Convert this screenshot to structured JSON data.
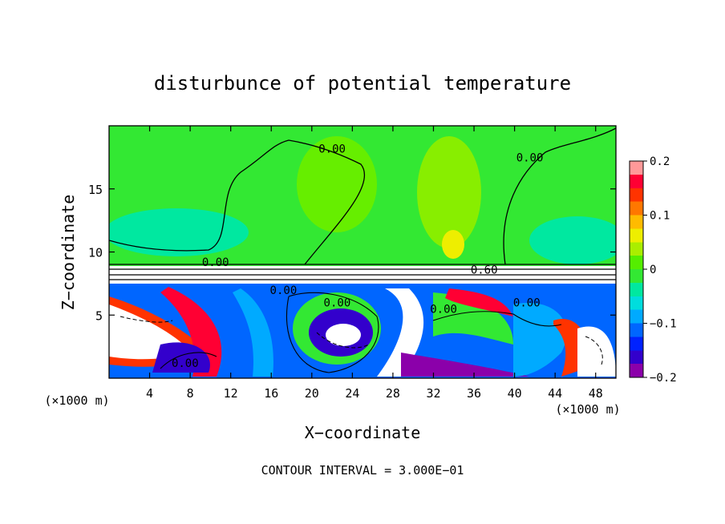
{
  "chart_data": {
    "type": "heatmap",
    "title": "disturbunce of potential temperature",
    "xlabel": "X−coordinate",
    "ylabel": "Z−coordinate",
    "x_unit_left": "(×1000 m)",
    "x_unit_right": "(×1000 m)",
    "footer": "CONTOUR INTERVAL = 3.000E−01",
    "xlim": [
      0,
      50
    ],
    "ylim": [
      0,
      20
    ],
    "x_ticks": [
      4,
      8,
      12,
      16,
      20,
      24,
      28,
      32,
      36,
      40,
      44,
      48
    ],
    "y_ticks": [
      5,
      10,
      15
    ],
    "colorbar": {
      "range": [
        -0.2,
        0.2
      ],
      "tick_values": [
        0.2,
        0.1,
        0,
        -0.1,
        -0.2
      ],
      "tick_labels": [
        "0.2",
        "0.1",
        "0",
        "−0.1",
        "−0.2"
      ],
      "colors": [
        "#8b00aa",
        "#3300cc",
        "#0022ff",
        "#0066ff",
        "#00aaff",
        "#00dddd",
        "#00e8a0",
        "#33e833",
        "#55ee00",
        "#aaee00",
        "#eeee00",
        "#ffbb00",
        "#ff7700",
        "#ff3300",
        "#ff0033",
        "#ff9999"
      ]
    },
    "contour_labels": [
      {
        "text": "0.00",
        "x": 22.0,
        "z": 18.2
      },
      {
        "text": "0.00",
        "x": 41.5,
        "z": 17.5
      },
      {
        "text": "0.00",
        "x": 10.5,
        "z": 9.2
      },
      {
        "text": "0.60",
        "x": 37.0,
        "z": 8.6
      },
      {
        "text": "0.00",
        "x": 17.2,
        "z": 7.0
      },
      {
        "text": "0.00",
        "x": 22.5,
        "z": 6.0
      },
      {
        "text": "0.00",
        "x": 33.0,
        "z": 5.5
      },
      {
        "text": "0.00",
        "x": 41.2,
        "z": 6.0
      },
      {
        "text": "0.00",
        "x": 7.5,
        "z": 1.2
      }
    ]
  }
}
